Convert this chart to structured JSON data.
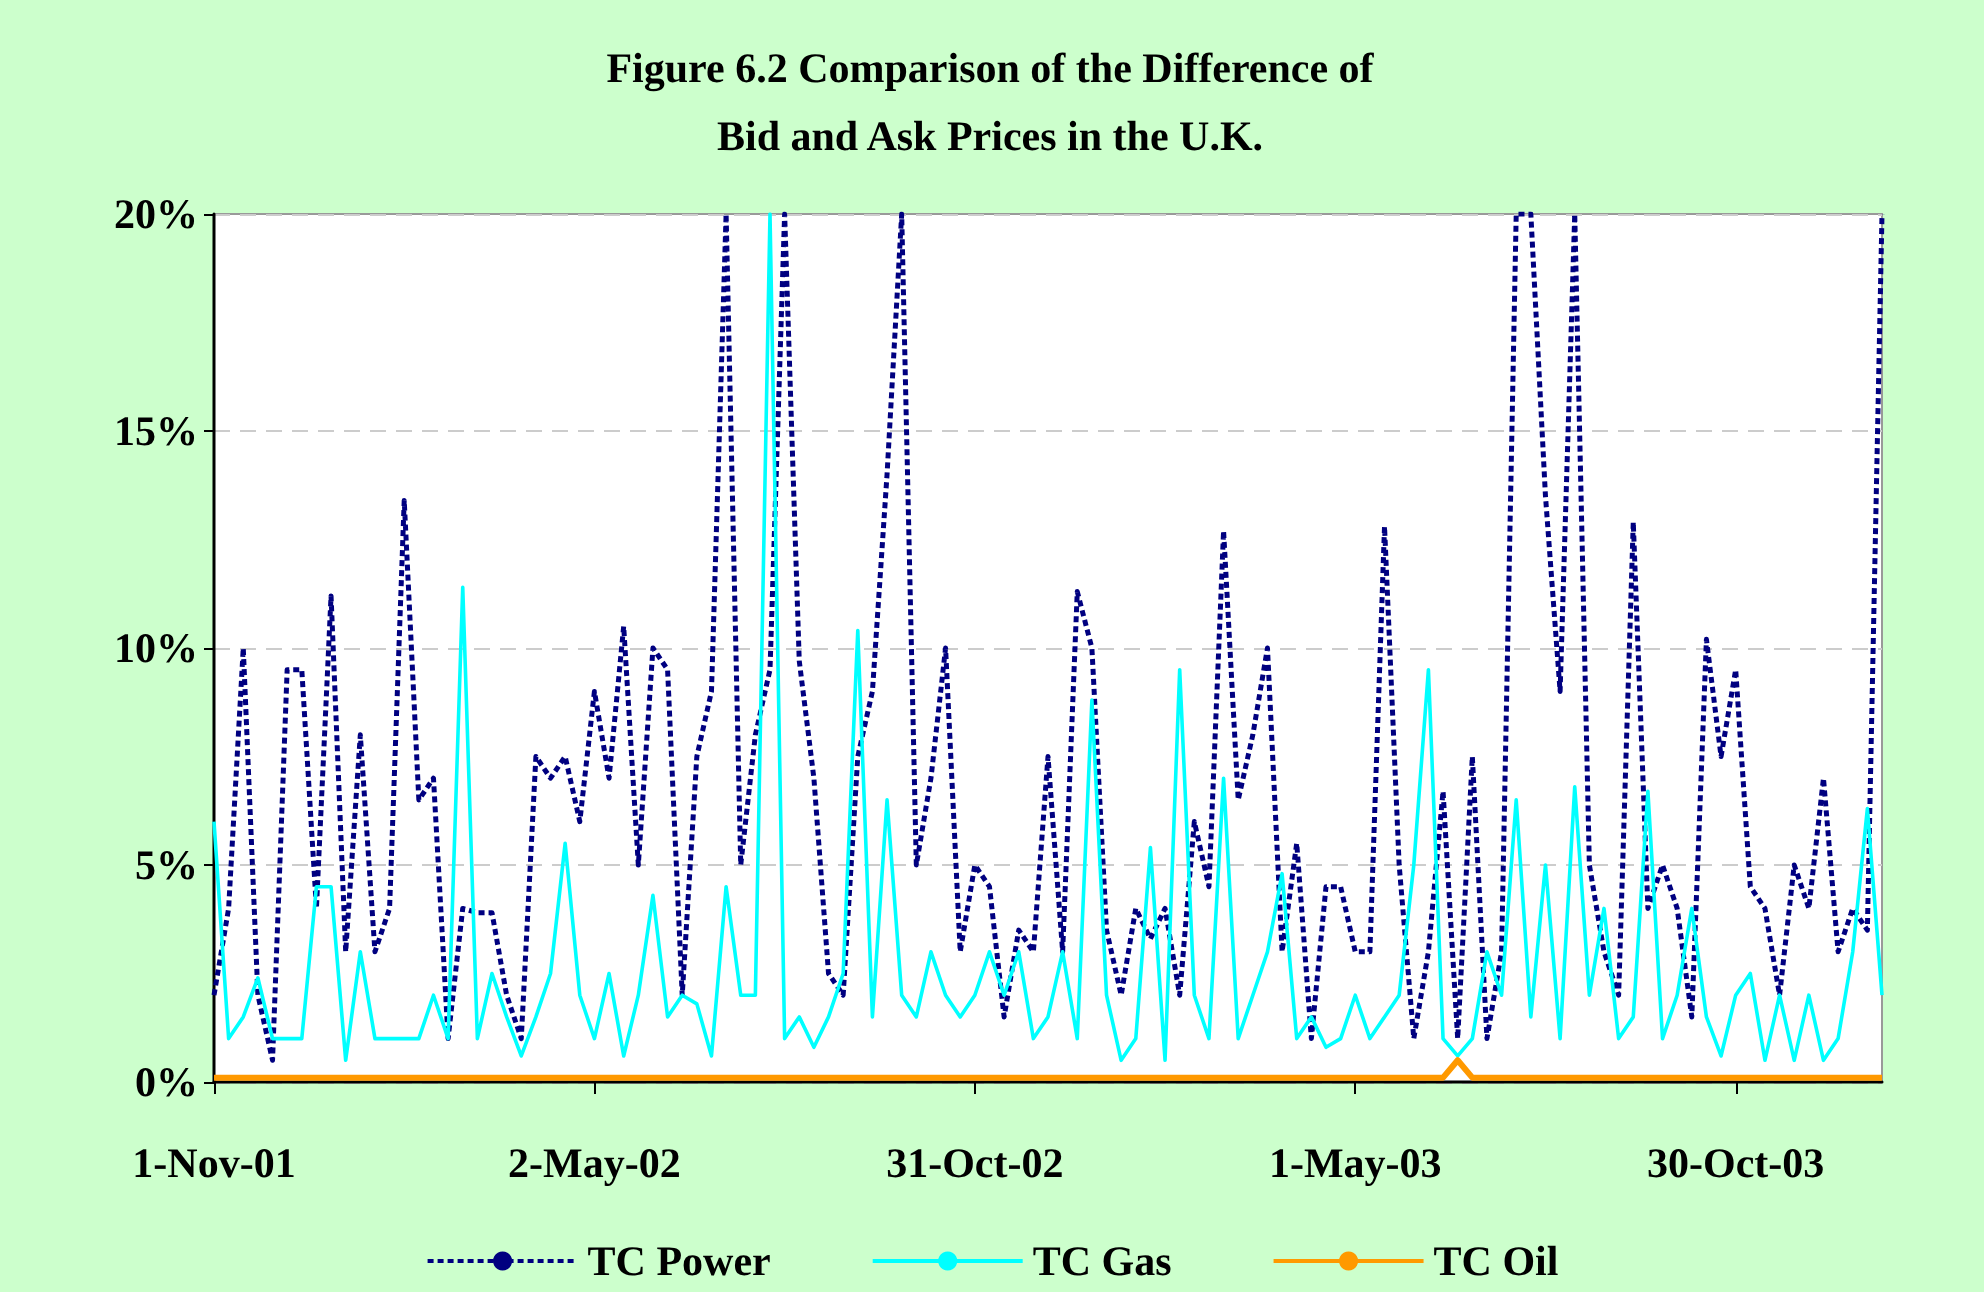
{
  "chart_data": {
    "type": "line",
    "title": "Figure 6.2 Comparison of the Difference of\nBid and Ask Prices in the U.K.",
    "x": [
      "2001-11-01",
      "2001-11-08",
      "2001-11-15",
      "2001-11-22",
      "2001-11-29",
      "2001-12-06",
      "2001-12-13",
      "2001-12-20",
      "2001-12-27",
      "2002-01-03",
      "2002-01-10",
      "2002-01-17",
      "2002-01-24",
      "2002-01-31",
      "2002-02-07",
      "2002-02-14",
      "2002-02-21",
      "2002-02-28",
      "2002-03-07",
      "2002-03-14",
      "2002-03-21",
      "2002-03-28",
      "2002-04-04",
      "2002-04-11",
      "2002-04-18",
      "2002-04-25",
      "2002-05-02",
      "2002-05-09",
      "2002-05-16",
      "2002-05-23",
      "2002-05-30",
      "2002-06-06",
      "2002-06-13",
      "2002-06-20",
      "2002-06-27",
      "2002-07-04",
      "2002-07-11",
      "2002-07-18",
      "2002-07-25",
      "2002-08-01",
      "2002-08-08",
      "2002-08-15",
      "2002-08-22",
      "2002-08-29",
      "2002-09-05",
      "2002-09-12",
      "2002-09-19",
      "2002-09-26",
      "2002-10-03",
      "2002-10-10",
      "2002-10-17",
      "2002-10-24",
      "2002-10-31",
      "2002-11-07",
      "2002-11-14",
      "2002-11-21",
      "2002-11-28",
      "2002-12-05",
      "2002-12-12",
      "2002-12-19",
      "2002-12-26",
      "2003-01-02",
      "2003-01-09",
      "2003-01-16",
      "2003-01-23",
      "2003-01-30",
      "2003-02-06",
      "2003-02-13",
      "2003-02-20",
      "2003-02-27",
      "2003-03-06",
      "2003-03-13",
      "2003-03-20",
      "2003-03-27",
      "2003-04-03",
      "2003-04-10",
      "2003-04-17",
      "2003-04-24",
      "2003-05-01",
      "2003-05-08",
      "2003-05-15",
      "2003-05-22",
      "2003-05-29",
      "2003-06-05",
      "2003-06-12",
      "2003-06-19",
      "2003-06-26",
      "2003-07-03",
      "2003-07-10",
      "2003-07-17",
      "2003-07-24",
      "2003-07-31",
      "2003-08-07",
      "2003-08-14",
      "2003-08-21",
      "2003-08-28",
      "2003-09-04",
      "2003-09-11",
      "2003-09-18",
      "2003-09-25",
      "2003-10-02",
      "2003-10-09",
      "2003-10-16",
      "2003-10-23",
      "2003-10-30",
      "2003-11-06",
      "2003-11-13",
      "2003-11-20",
      "2003-11-27",
      "2003-12-04",
      "2003-12-11",
      "2003-12-18",
      "2003-12-25",
      "2004-01-01",
      "2004-01-08"
    ],
    "series": [
      {
        "name": "TC Power",
        "color": "#000080",
        "line_style": "dashed",
        "values": [
          2,
          4,
          10,
          2,
          0.5,
          9.5,
          9.5,
          4,
          11.2,
          3,
          8,
          3,
          4,
          13.4,
          6.5,
          7,
          1,
          4,
          3.9,
          3.9,
          2,
          1,
          7.5,
          7,
          7.5,
          6,
          9,
          7,
          10.5,
          5,
          10,
          9.5,
          2,
          7.5,
          9,
          20,
          5,
          8,
          9.5,
          20,
          9.7,
          7,
          2.5,
          2,
          7.5,
          9,
          14,
          20,
          5,
          7,
          10,
          3,
          5,
          4.5,
          1.5,
          3.5,
          3,
          7.5,
          3,
          11.3,
          10,
          3.5,
          2,
          4,
          3.3,
          4,
          2,
          6,
          4.5,
          12.7,
          6.5,
          8,
          10,
          3,
          5.5,
          1,
          4.5,
          4.5,
          3,
          3,
          12.8,
          5,
          1,
          3,
          6.7,
          1,
          7.5,
          1,
          3,
          20,
          20,
          13.5,
          9,
          20,
          5,
          3,
          2,
          12.9,
          4,
          5,
          4,
          1.5,
          10.2,
          7.5,
          9.5,
          4.5,
          4,
          2,
          5,
          4,
          7,
          3,
          4,
          3.5,
          20
        ]
      },
      {
        "name": "TC Gas",
        "color": "#00ffff",
        "line_style": "solid",
        "values": [
          6,
          1,
          1.5,
          2.4,
          1,
          1,
          1,
          4.5,
          4.5,
          0.5,
          3,
          1,
          1,
          1,
          1,
          2,
          1,
          11.4,
          1,
          2.5,
          1.5,
          0.6,
          1.5,
          2.5,
          5.5,
          2,
          1,
          2.5,
          0.6,
          2,
          4.3,
          1.5,
          2,
          1.8,
          0.6,
          4.5,
          2,
          2,
          20,
          1,
          1.5,
          0.8,
          1.5,
          2.5,
          10.4,
          1.5,
          6.5,
          2,
          1.5,
          3,
          2,
          1.5,
          2,
          3,
          2,
          3,
          1,
          1.5,
          3,
          1,
          8.8,
          2,
          0.5,
          1,
          5.4,
          0.5,
          9.5,
          2,
          1,
          7,
          1,
          2,
          3,
          4.8,
          1,
          1.5,
          0.8,
          1,
          2,
          1,
          1.5,
          2,
          5,
          9.5,
          1,
          0.6,
          1,
          3,
          2,
          6.5,
          1.5,
          5,
          1,
          6.8,
          2,
          4,
          1,
          1.5,
          6.7,
          1,
          2,
          4,
          1.5,
          0.6,
          2,
          2.5,
          0.5,
          2,
          0.5,
          2,
          0.5,
          1,
          3,
          6.3,
          2
        ]
      },
      {
        "name": "TC Oil",
        "color": "#ff9900",
        "line_style": "solid",
        "values": [
          0.1,
          0.1,
          0.1,
          0.1,
          0.1,
          0.1,
          0.1,
          0.1,
          0.1,
          0.1,
          0.1,
          0.1,
          0.1,
          0.1,
          0.1,
          0.1,
          0.1,
          0.1,
          0.1,
          0.1,
          0.1,
          0.1,
          0.1,
          0.1,
          0.1,
          0.1,
          0.1,
          0.1,
          0.1,
          0.1,
          0.1,
          0.1,
          0.1,
          0.1,
          0.1,
          0.1,
          0.1,
          0.1,
          0.1,
          0.1,
          0.1,
          0.1,
          0.1,
          0.1,
          0.1,
          0.1,
          0.1,
          0.1,
          0.1,
          0.1,
          0.1,
          0.1,
          0.1,
          0.1,
          0.1,
          0.1,
          0.1,
          0.1,
          0.1,
          0.1,
          0.1,
          0.1,
          0.1,
          0.1,
          0.1,
          0.1,
          0.1,
          0.1,
          0.1,
          0.1,
          0.1,
          0.1,
          0.1,
          0.1,
          0.1,
          0.1,
          0.1,
          0.1,
          0.1,
          0.1,
          0.1,
          0.1,
          0.1,
          0.1,
          0.1,
          0.5,
          0.1,
          0.1,
          0.1,
          0.1,
          0.1,
          0.1,
          0.1,
          0.1,
          0.1,
          0.1,
          0.1,
          0.1,
          0.1,
          0.1,
          0.1,
          0.1,
          0.1,
          0.1,
          0.1,
          0.1,
          0.1,
          0.1,
          0.1,
          0.1,
          0.1,
          0.1,
          0.1,
          0.1,
          0.1
        ]
      }
    ],
    "xlim": [
      "2001-11-01",
      "2004-01-08"
    ],
    "xticks": [
      {
        "value": "2001-11-01",
        "label": "1-Nov-01"
      },
      {
        "value": "2002-05-02",
        "label": "2-May-02"
      },
      {
        "value": "2002-10-31",
        "label": "31-Oct-02"
      },
      {
        "value": "2003-05-01",
        "label": "1-May-03"
      },
      {
        "value": "2003-10-30",
        "label": "30-Oct-03"
      }
    ],
    "ylim": [
      0,
      20
    ],
    "yticks": [
      {
        "value": 0,
        "label": "0%"
      },
      {
        "value": 5,
        "label": "5%"
      },
      {
        "value": 10,
        "label": "10%"
      },
      {
        "value": 15,
        "label": "15%"
      },
      {
        "value": 20,
        "label": "20%"
      }
    ],
    "grid": "y",
    "legend": "bottom",
    "marker": "none"
  }
}
